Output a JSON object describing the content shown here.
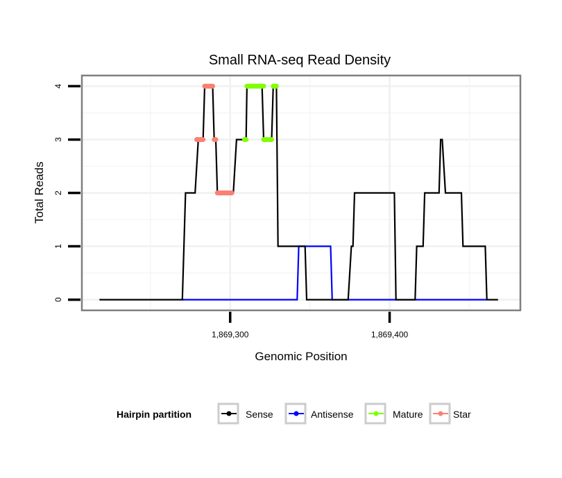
{
  "chart_data": {
    "type": "line",
    "title": "Small RNA-seq Read Density",
    "xlabel": "Genomic Position",
    "ylabel": "Total Reads",
    "xlim": [
      1869207,
      1869482
    ],
    "ylim": [
      -0.2,
      4.2
    ],
    "x_ticks": [
      1869300,
      1869400
    ],
    "x_tick_labels": [
      "1,869,300",
      "1,869,400"
    ],
    "y_ticks": [
      0,
      1,
      2,
      3,
      4
    ],
    "y_tick_labels": [
      "0",
      "1",
      "2",
      "3",
      "4"
    ],
    "grid": true,
    "legend": {
      "title": "Hairpin partition",
      "position": "bottom",
      "entries": [
        {
          "name": "Sense",
          "color": "#000000"
        },
        {
          "name": "Antisense",
          "color": "#0000ff"
        },
        {
          "name": "Mature",
          "color": "#7fff00"
        },
        {
          "name": "Star",
          "color": "#fa8072"
        }
      ]
    },
    "series": [
      {
        "name": "Sense",
        "color": "#000000",
        "points": [
          [
            1869218,
            0
          ],
          [
            1869270,
            0
          ],
          [
            1869272,
            2
          ],
          [
            1869278,
            2
          ],
          [
            1869280,
            3
          ],
          [
            1869283,
            3
          ],
          [
            1869284,
            4
          ],
          [
            1869289,
            4
          ],
          [
            1869290,
            3
          ],
          [
            1869291,
            3
          ],
          [
            1869292,
            2
          ],
          [
            1869302,
            2
          ],
          [
            1869304,
            3
          ],
          [
            1869310,
            3
          ],
          [
            1869310.5,
            4
          ],
          [
            1869320,
            4
          ],
          [
            1869321,
            3
          ],
          [
            1869326,
            3
          ],
          [
            1869327,
            4
          ],
          [
            1869329,
            4
          ],
          [
            1869330,
            1
          ],
          [
            1869347,
            1
          ],
          [
            1869348,
            0
          ],
          [
            1869374,
            0
          ],
          [
            1869376,
            1
          ],
          [
            1869377,
            1
          ],
          [
            1869378,
            2
          ],
          [
            1869403,
            2
          ],
          [
            1869404,
            0
          ],
          [
            1869416,
            0
          ],
          [
            1869417,
            1
          ],
          [
            1869421,
            1
          ],
          [
            1869422,
            2
          ],
          [
            1869431,
            2
          ],
          [
            1869432,
            3
          ],
          [
            1869433,
            3
          ],
          [
            1869435,
            2
          ],
          [
            1869445,
            2
          ],
          [
            1869446,
            1
          ],
          [
            1869460,
            1
          ],
          [
            1869461,
            0
          ],
          [
            1869468,
            0
          ]
        ]
      },
      {
        "name": "Antisense",
        "color": "#0000ff",
        "points": [
          [
            1869270,
            0
          ],
          [
            1869342,
            0
          ],
          [
            1869343,
            1
          ],
          [
            1869363,
            1
          ],
          [
            1869364,
            0
          ],
          [
            1869374,
            0
          ],
          [
            1869404,
            0
          ],
          [
            1869461,
            0
          ]
        ]
      },
      {
        "name": "Mature",
        "color": "#7fff00",
        "segments": [
          {
            "x": [
              1869309,
              1869310
            ],
            "y": 3
          },
          {
            "x": [
              1869310.5,
              1869321
            ],
            "y": 4
          },
          {
            "x": [
              1869321,
              1869326
            ],
            "y": 3
          },
          {
            "x": [
              1869327,
              1869329
            ],
            "y": 4
          }
        ]
      },
      {
        "name": "Star",
        "color": "#fa8072",
        "segments": [
          {
            "x": [
              1869279,
              1869283
            ],
            "y": 3
          },
          {
            "x": [
              1869284,
              1869289
            ],
            "y": 4
          },
          {
            "x": [
              1869290,
              1869291
            ],
            "y": 3
          },
          {
            "x": [
              1869292,
              1869301
            ],
            "y": 2
          }
        ]
      }
    ]
  }
}
